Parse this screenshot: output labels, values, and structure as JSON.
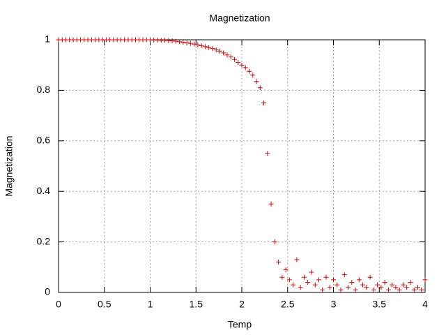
{
  "chart_data": {
    "type": "scatter",
    "title": "Magnetization",
    "x_label": "Temp",
    "y_label": "Magnetization",
    "color": "#e00000",
    "grid": true,
    "xlim": [
      0,
      4
    ],
    "xticks": [
      0,
      0.5,
      1,
      1.5,
      2,
      2.5,
      3,
      3.5,
      4
    ],
    "ylim": [
      0,
      1
    ],
    "yticks": [
      0,
      0.2,
      0.4,
      0.6,
      0.8,
      1
    ],
    "x": [
      0,
      0.04,
      0.08,
      0.12,
      0.16,
      0.2,
      0.24,
      0.28,
      0.32,
      0.36,
      0.4,
      0.44,
      0.48,
      0.52,
      0.56,
      0.6,
      0.64,
      0.68,
      0.72,
      0.76,
      0.8,
      0.84,
      0.88,
      0.92,
      0.96,
      1,
      1.04,
      1.08,
      1.12,
      1.16,
      1.2,
      1.24,
      1.28,
      1.32,
      1.36,
      1.4,
      1.44,
      1.48,
      1.52,
      1.56,
      1.6,
      1.64,
      1.68,
      1.72,
      1.76,
      1.8,
      1.84,
      1.88,
      1.92,
      1.96,
      2,
      2.04,
      2.08,
      2.12,
      2.16,
      2.2,
      2.24,
      2.28,
      2.32,
      2.36,
      2.4,
      2.44,
      2.48,
      2.52,
      2.56,
      2.6,
      2.64,
      2.68,
      2.72,
      2.76,
      2.8,
      2.84,
      2.88,
      2.92,
      2.96,
      3,
      3.04,
      3.08,
      3.12,
      3.16,
      3.2,
      3.24,
      3.28,
      3.32,
      3.36,
      3.4,
      3.44,
      3.48,
      3.52,
      3.56,
      3.6,
      3.64,
      3.68,
      3.72,
      3.76,
      3.8,
      3.84,
      3.88,
      3.92,
      3.96,
      4
    ],
    "values": [
      1,
      1,
      1,
      1,
      1,
      1,
      1,
      1,
      1,
      1,
      1,
      1,
      1,
      1,
      1,
      1,
      1,
      1,
      1,
      1,
      1,
      1,
      1,
      1,
      1,
      1,
      0.999,
      0.999,
      0.998,
      0.998,
      0.997,
      0.996,
      0.994,
      0.992,
      0.99,
      0.988,
      0.986,
      0.983,
      0.98,
      0.977,
      0.973,
      0.969,
      0.965,
      0.96,
      0.955,
      0.948,
      0.94,
      0.932,
      0.922,
      0.91,
      0.9,
      0.89,
      0.875,
      0.86,
      0.835,
      0.81,
      0.75,
      0.55,
      0.35,
      0.2,
      0.12,
      0.06,
      0.09,
      0.05,
      0.03,
      0.13,
      0.02,
      0.06,
      0.04,
      0.08,
      0.03,
      0.05,
      0.01,
      0.06,
      0.02,
      0.05,
      0.03,
      0.01,
      0.07,
      0.02,
      0.04,
      0.01,
      0.05,
      0.03,
      0.02,
      0.06,
      0.01,
      0.03,
      0.02,
      0.04,
      0.01,
      0.03,
      0.02,
      0.01,
      0.03,
      0.02,
      0.04,
      0.01,
      0.02,
      0.01,
      0.05
    ]
  }
}
